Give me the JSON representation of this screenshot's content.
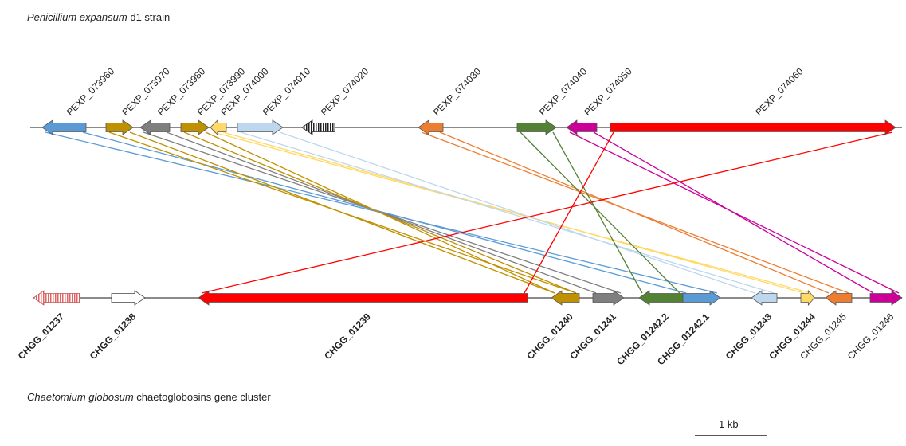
{
  "top_caption": {
    "species": "Penicillium expansum",
    "rest": " d1 strain"
  },
  "bottom_caption": {
    "species": "Chaetomium globosum",
    "rest": " chaetoglobosins gene cluster"
  },
  "scale_bar_label": "1 kb",
  "colors": {
    "blue": "#5b9bd5",
    "gold": "#bf9000",
    "gray": "#7f7f7f",
    "yellow": "#ffd966",
    "lightblue": "#bdd7ee",
    "orange": "#ed7d31",
    "green": "#548235",
    "magenta": "#cc0099",
    "red": "#ff0000",
    "pink_hatch": "#e06666",
    "white": "#ffffff"
  },
  "top_genes": [
    {
      "id": "PEXP_073960",
      "color": "blue",
      "strand": "-"
    },
    {
      "id": "PEXP_073970",
      "color": "gold",
      "strand": "+"
    },
    {
      "id": "PEXP_073980",
      "color": "gray",
      "strand": "-"
    },
    {
      "id": "PEXP_073990",
      "color": "gold",
      "strand": "+"
    },
    {
      "id": "PEXP_074000",
      "color": "yellow",
      "strand": "-"
    },
    {
      "id": "PEXP_074010",
      "color": "lightblue",
      "strand": "+"
    },
    {
      "id": "PEXP_074020",
      "color": "black-hatch",
      "strand": "-"
    },
    {
      "id": "PEXP_074030",
      "color": "orange",
      "strand": "-"
    },
    {
      "id": "PEXP_074040",
      "color": "green",
      "strand": "+"
    },
    {
      "id": "PEXP_074050",
      "color": "magenta",
      "strand": "-"
    },
    {
      "id": "PEXP_074060",
      "color": "red",
      "strand": "+"
    }
  ],
  "bottom_genes": [
    {
      "id": "CHGG_01237",
      "color": "pink-hatch",
      "strand": "-",
      "bold": true
    },
    {
      "id": "CHGG_01238",
      "color": "white",
      "strand": "+",
      "bold": true
    },
    {
      "id": "CHGG_01239",
      "color": "red",
      "strand": "-",
      "bold": true
    },
    {
      "id": "CHGG_01240",
      "color": "gold",
      "strand": "-",
      "bold": true
    },
    {
      "id": "CHGG_01241",
      "color": "gray",
      "strand": "+",
      "bold": true
    },
    {
      "id": "CHGG_01242.2",
      "color": "green",
      "strand": "-",
      "bold": true
    },
    {
      "id": "CHGG_01242.1",
      "color": "blue",
      "strand": "+",
      "bold": true
    },
    {
      "id": "CHGG_01243",
      "color": "lightblue",
      "strand": "-",
      "bold": true
    },
    {
      "id": "CHGG_01244",
      "color": "yellow",
      "strand": "+",
      "bold": true
    },
    {
      "id": "CHGG_01245",
      "color": "orange",
      "strand": "-",
      "bold": false
    },
    {
      "id": "CHGG_01246",
      "color": "magenta",
      "strand": "+",
      "bold": false
    }
  ],
  "links": [
    {
      "from": "PEXP_073960",
      "to": "CHGG_01242.1",
      "color": "blue"
    },
    {
      "from": "PEXP_073970",
      "to": "CHGG_01240",
      "color": "gold"
    },
    {
      "from": "PEXP_073980",
      "to": "CHGG_01241",
      "color": "gray"
    },
    {
      "from": "PEXP_073990",
      "to": "CHGG_01240",
      "color": "gold"
    },
    {
      "from": "PEXP_074000",
      "to": "CHGG_01244",
      "color": "yellow"
    },
    {
      "from": "PEXP_074010",
      "to": "CHGG_01243",
      "color": "lightblue"
    },
    {
      "from": "PEXP_074030",
      "to": "CHGG_01245",
      "color": "orange"
    },
    {
      "from": "PEXP_074040",
      "to": "CHGG_01242.2",
      "color": "green"
    },
    {
      "from": "PEXP_074050",
      "to": "CHGG_01246",
      "color": "magenta"
    },
    {
      "from": "PEXP_074060",
      "to": "CHGG_01239",
      "color": "red"
    }
  ]
}
